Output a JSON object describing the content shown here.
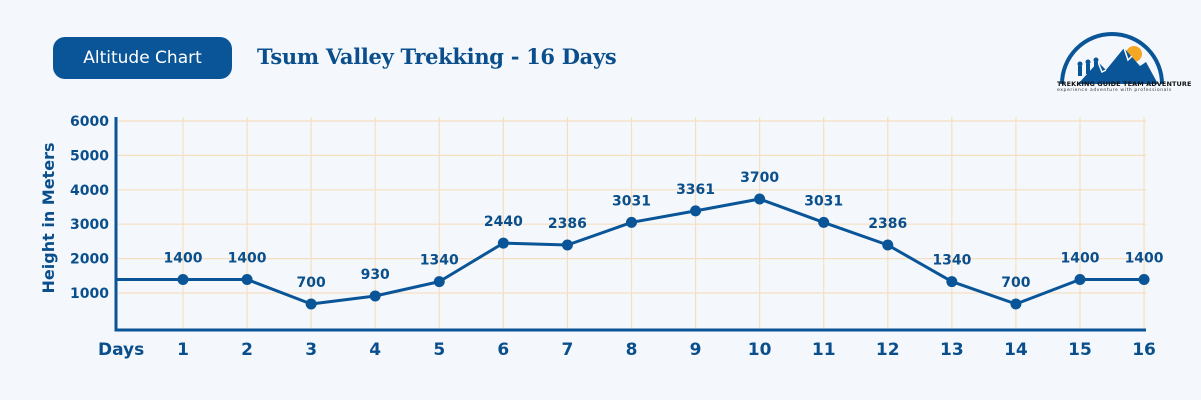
{
  "header": {
    "badge_label": "Altitude Chart",
    "title": "Tsum Valley Trekking - 16 Days"
  },
  "logo": {
    "name": "TREKKING GUIDE TEAM ADVENTURE",
    "tagline": "experience adventure with professionals"
  },
  "colors": {
    "primary": "#0a5598",
    "text": "#0a4f8c",
    "grid": "#f6dfc0",
    "background": "#f4f8fc",
    "sun": "#f5a623"
  },
  "chart_data": {
    "type": "line",
    "title": "Tsum Valley Trekking - 16 Days",
    "xlabel": "Days",
    "ylabel": "Height in Meters",
    "categories": [
      "1",
      "2",
      "3",
      "4",
      "5",
      "6",
      "7",
      "8",
      "9",
      "10",
      "11",
      "12",
      "13",
      "14",
      "15",
      "16"
    ],
    "values": [
      1400,
      1400,
      700,
      930,
      1340,
      2440,
      2386,
      3031,
      3361,
      3700,
      3031,
      2386,
      1340,
      700,
      1400,
      1400
    ],
    "y_ticks": [
      "1000",
      "2000",
      "3000",
      "4000",
      "5000",
      "6000"
    ],
    "ylim": [
      0,
      6000
    ],
    "grid": true,
    "data_labels": true,
    "legend": "none"
  }
}
